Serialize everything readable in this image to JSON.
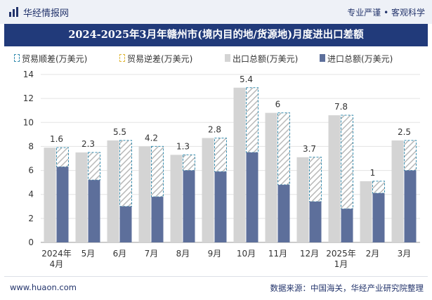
{
  "header": {
    "site_name": "华经情报网",
    "tagline": "专业严谨 • 客观科学"
  },
  "footer": {
    "url": "www.huaon.com",
    "source": "数据来源：中国海关，华经产业研究院整理"
  },
  "colors": {
    "title_bg": "#213a7a",
    "export_bar": "#d4d4d4",
    "import_bar": "#5d6f9b",
    "surplus_outline": "#3a8fb0",
    "deficit_outline": "#e0b83a",
    "label": "#333333"
  },
  "chart_data": {
    "type": "bar",
    "title": "2024-2025年3月年赣州市(境内目的地/货源地)月度进出口差额",
    "categories": [
      "2024年\n4月",
      "5月",
      "6月",
      "7月",
      "8月",
      "9月",
      "10月",
      "11月",
      "12月",
      "2025年\n1月",
      "2月",
      "3月"
    ],
    "series": [
      {
        "name": "贸易顺差(万美元)",
        "values": [
          1.6,
          2.3,
          5.5,
          4.2,
          1.3,
          2.8,
          5.4,
          6,
          3.7,
          7.8,
          1,
          2.5
        ]
      },
      {
        "name": "贸易逆差(万美元)",
        "values": [
          0,
          0,
          0,
          0,
          0,
          0,
          0,
          0,
          0,
          0,
          0,
          0
        ]
      },
      {
        "name": "出口总额(万美元)",
        "values": [
          7.9,
          7.5,
          8.5,
          8.0,
          7.3,
          8.7,
          12.9,
          10.8,
          7.1,
          10.6,
          5.1,
          8.5
        ]
      },
      {
        "name": "进口总额(万美元)",
        "values": [
          6.3,
          5.2,
          3.0,
          3.8,
          6.0,
          5.9,
          7.5,
          4.8,
          3.4,
          2.8,
          4.1,
          6.0
        ]
      }
    ],
    "data_labels": [
      "1.6",
      "2.3",
      "5.5",
      "4.2",
      "1.3",
      "2.8",
      "5.4",
      "6",
      "3.7",
      "7.8",
      "1",
      "2.5"
    ],
    "ylim": [
      0,
      14
    ],
    "yticks": [
      0,
      2,
      4,
      6,
      8,
      10,
      12,
      14
    ],
    "grid": true,
    "legend_position": "top"
  }
}
